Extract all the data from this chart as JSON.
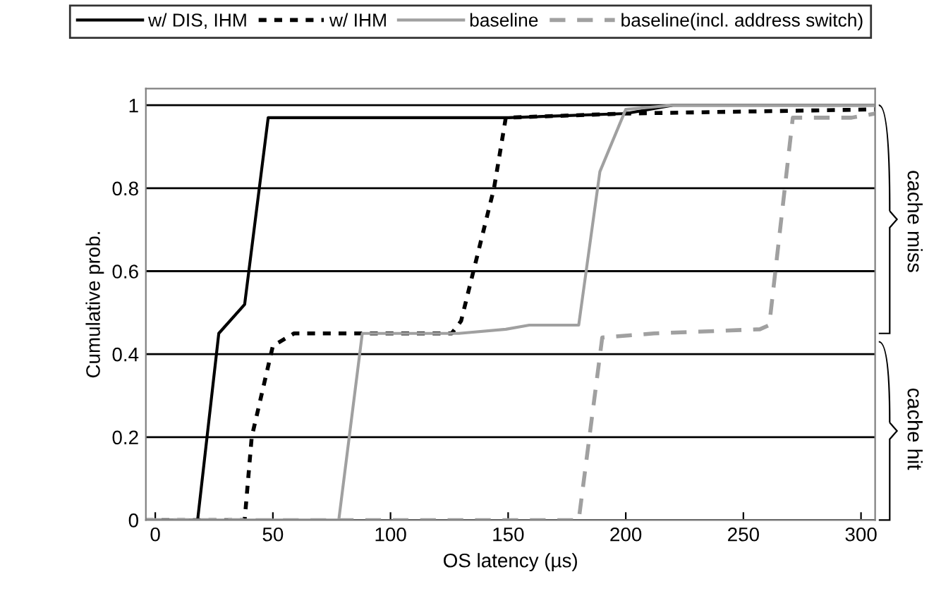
{
  "chart_data": {
    "type": "line",
    "xlabel": "OS latency (µs)",
    "ylabel": "Cumulative prob.",
    "xlim": [
      -4,
      306
    ],
    "xticks": [
      0,
      50,
      100,
      150,
      200,
      250,
      300
    ],
    "ylim": [
      0,
      1.04
    ],
    "yticks": [
      0,
      0.2,
      0.4,
      0.6,
      0.8,
      1
    ],
    "grid": "y",
    "legend": "top",
    "marker": "none",
    "annotations": [
      "cache miss",
      "cache hit"
    ],
    "series": [
      {
        "name": "w/ DIS, IHM",
        "color": "#000000",
        "line_style": "solid",
        "x": [
          -4,
          18,
          27,
          38,
          48,
          100,
          150,
          200,
          220,
          306
        ],
        "values": [
          0,
          0,
          0.45,
          0.52,
          0.97,
          0.97,
          0.97,
          0.98,
          1,
          1
        ]
      },
      {
        "name": "w/ IHM",
        "color": "#000000",
        "line_style": "dotted",
        "x": [
          -4,
          38,
          41,
          50,
          59,
          126,
          130,
          144,
          149,
          200,
          306
        ],
        "values": [
          0,
          0,
          0.2,
          0.42,
          0.45,
          0.45,
          0.48,
          0.8,
          0.97,
          0.98,
          0.99
        ]
      },
      {
        "name": "baseline",
        "color": "#a0a0a0",
        "line_style": "solid",
        "x": [
          -4,
          78,
          88,
          129,
          149,
          159,
          180,
          189,
          200,
          220,
          306
        ],
        "values": [
          0,
          0,
          0.45,
          0.45,
          0.46,
          0.47,
          0.47,
          0.84,
          0.99,
          1,
          1
        ]
      },
      {
        "name": "baseline(incl. address switch)",
        "color": "#a0a0a0",
        "line_style": "dashed",
        "x": [
          -4,
          180,
          190,
          212,
          257,
          261,
          271,
          296,
          306
        ],
        "values": [
          0,
          0,
          0.44,
          0.45,
          0.46,
          0.47,
          0.97,
          0.97,
          0.98
        ]
      }
    ]
  }
}
